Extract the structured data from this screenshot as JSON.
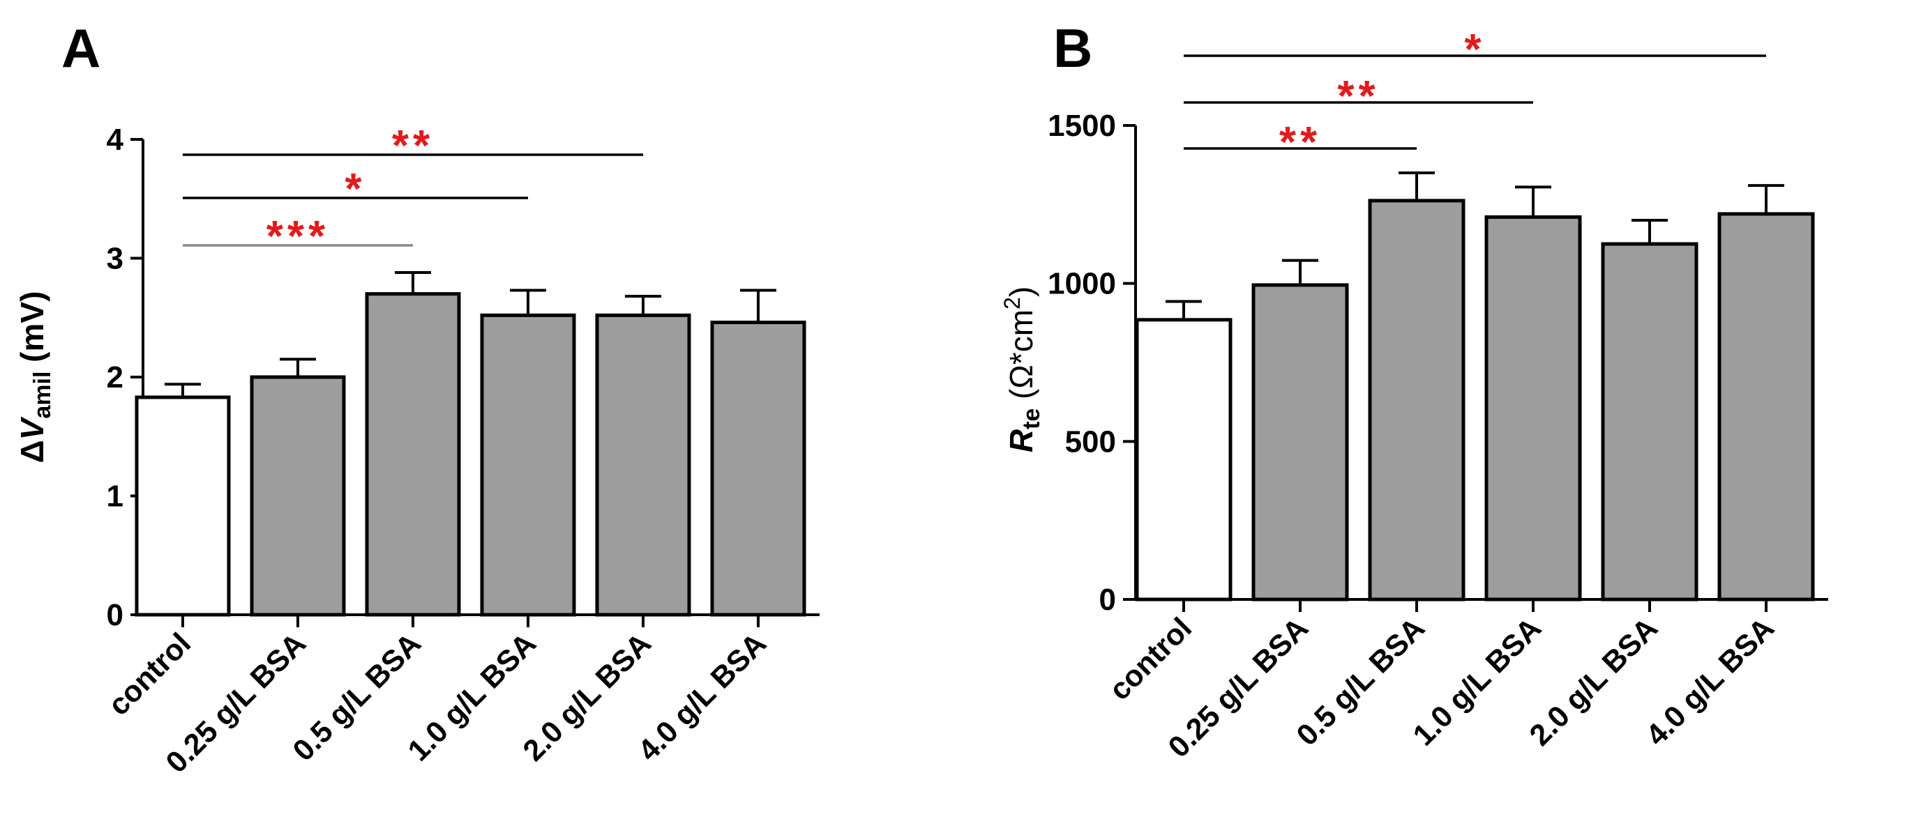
{
  "colors": {
    "control_fill": "#ffffff",
    "treatment_fill": "#9d9d9d",
    "stroke": "#000000",
    "significance": "#e31a1c",
    "gray_bracket": "#8a8a8a"
  },
  "chart_data": [
    {
      "panel": "A",
      "type": "bar",
      "title": "",
      "xlabel": "",
      "ylabel_prefix": "Δ",
      "ylabel_var": "V",
      "ylabel_sub": "amil",
      "ylabel_unit": " (mV)",
      "ylim": [
        0,
        4
      ],
      "yticks": [
        0,
        1,
        2,
        3,
        4
      ],
      "categories": [
        "control",
        "0.25 g/L BSA",
        "0.5 g/L BSA",
        "1.0 g/L BSA",
        "2.0 g/L BSA",
        "4.0 g/L BSA"
      ],
      "values": [
        1.83,
        2.0,
        2.7,
        2.52,
        2.52,
        2.46
      ],
      "errors": [
        0.11,
        0.15,
        0.18,
        0.21,
        0.16,
        0.27
      ],
      "significance": [
        {
          "from": 0,
          "to": 2,
          "label": "***",
          "line_color": "gray"
        },
        {
          "from": 0,
          "to": 3,
          "label": "*",
          "line_color": "black"
        },
        {
          "from": 0,
          "to": 4,
          "label": "**",
          "line_color": "black"
        }
      ]
    },
    {
      "panel": "B",
      "type": "bar",
      "title": "",
      "xlabel": "",
      "ylabel_var": "R",
      "ylabel_sub": "te",
      "ylabel_unit": " (Ω*cm",
      "ylabel_sup": "2",
      "ylabel_close": ")",
      "ylim": [
        0,
        1500
      ],
      "yticks": [
        0,
        500,
        1000,
        1500
      ],
      "categories": [
        "control",
        "0.25 g/L BSA",
        "0.5 g/L BSA",
        "1.0 g/L BSA",
        "2.0 g/L BSA",
        "4.0 g/L BSA"
      ],
      "values": [
        885,
        995,
        1262,
        1210,
        1125,
        1220
      ],
      "errors": [
        58,
        78,
        88,
        95,
        75,
        90
      ],
      "significance": [
        {
          "from": 0,
          "to": 2,
          "label": "**",
          "line_color": "black"
        },
        {
          "from": 0,
          "to": 3,
          "label": "**",
          "line_color": "black"
        },
        {
          "from": 0,
          "to": 5,
          "label": "*",
          "line_color": "black"
        }
      ]
    }
  ]
}
